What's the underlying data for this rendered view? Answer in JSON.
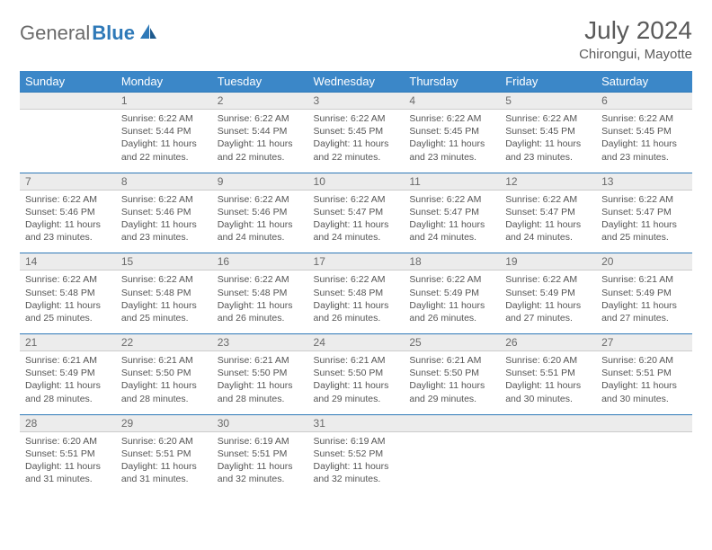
{
  "logo": {
    "text1": "General",
    "text2": "Blue"
  },
  "title": "July 2024",
  "location": "Chirongui, Mayotte",
  "colors": {
    "header_bg": "#3b87c8",
    "daynum_bg": "#ececec",
    "accent_border": "#2e79b8",
    "text": "#555555"
  },
  "dow": [
    "Sunday",
    "Monday",
    "Tuesday",
    "Wednesday",
    "Thursday",
    "Friday",
    "Saturday"
  ],
  "weeks": [
    {
      "nums": [
        "",
        "1",
        "2",
        "3",
        "4",
        "5",
        "6"
      ],
      "cells": [
        null,
        {
          "sr": "Sunrise: 6:22 AM",
          "ss": "Sunset: 5:44 PM",
          "d1": "Daylight: 11 hours",
          "d2": "and 22 minutes."
        },
        {
          "sr": "Sunrise: 6:22 AM",
          "ss": "Sunset: 5:44 PM",
          "d1": "Daylight: 11 hours",
          "d2": "and 22 minutes."
        },
        {
          "sr": "Sunrise: 6:22 AM",
          "ss": "Sunset: 5:45 PM",
          "d1": "Daylight: 11 hours",
          "d2": "and 22 minutes."
        },
        {
          "sr": "Sunrise: 6:22 AM",
          "ss": "Sunset: 5:45 PM",
          "d1": "Daylight: 11 hours",
          "d2": "and 23 minutes."
        },
        {
          "sr": "Sunrise: 6:22 AM",
          "ss": "Sunset: 5:45 PM",
          "d1": "Daylight: 11 hours",
          "d2": "and 23 minutes."
        },
        {
          "sr": "Sunrise: 6:22 AM",
          "ss": "Sunset: 5:45 PM",
          "d1": "Daylight: 11 hours",
          "d2": "and 23 minutes."
        }
      ]
    },
    {
      "nums": [
        "7",
        "8",
        "9",
        "10",
        "11",
        "12",
        "13"
      ],
      "cells": [
        {
          "sr": "Sunrise: 6:22 AM",
          "ss": "Sunset: 5:46 PM",
          "d1": "Daylight: 11 hours",
          "d2": "and 23 minutes."
        },
        {
          "sr": "Sunrise: 6:22 AM",
          "ss": "Sunset: 5:46 PM",
          "d1": "Daylight: 11 hours",
          "d2": "and 23 minutes."
        },
        {
          "sr": "Sunrise: 6:22 AM",
          "ss": "Sunset: 5:46 PM",
          "d1": "Daylight: 11 hours",
          "d2": "and 24 minutes."
        },
        {
          "sr": "Sunrise: 6:22 AM",
          "ss": "Sunset: 5:47 PM",
          "d1": "Daylight: 11 hours",
          "d2": "and 24 minutes."
        },
        {
          "sr": "Sunrise: 6:22 AM",
          "ss": "Sunset: 5:47 PM",
          "d1": "Daylight: 11 hours",
          "d2": "and 24 minutes."
        },
        {
          "sr": "Sunrise: 6:22 AM",
          "ss": "Sunset: 5:47 PM",
          "d1": "Daylight: 11 hours",
          "d2": "and 24 minutes."
        },
        {
          "sr": "Sunrise: 6:22 AM",
          "ss": "Sunset: 5:47 PM",
          "d1": "Daylight: 11 hours",
          "d2": "and 25 minutes."
        }
      ]
    },
    {
      "nums": [
        "14",
        "15",
        "16",
        "17",
        "18",
        "19",
        "20"
      ],
      "cells": [
        {
          "sr": "Sunrise: 6:22 AM",
          "ss": "Sunset: 5:48 PM",
          "d1": "Daylight: 11 hours",
          "d2": "and 25 minutes."
        },
        {
          "sr": "Sunrise: 6:22 AM",
          "ss": "Sunset: 5:48 PM",
          "d1": "Daylight: 11 hours",
          "d2": "and 25 minutes."
        },
        {
          "sr": "Sunrise: 6:22 AM",
          "ss": "Sunset: 5:48 PM",
          "d1": "Daylight: 11 hours",
          "d2": "and 26 minutes."
        },
        {
          "sr": "Sunrise: 6:22 AM",
          "ss": "Sunset: 5:48 PM",
          "d1": "Daylight: 11 hours",
          "d2": "and 26 minutes."
        },
        {
          "sr": "Sunrise: 6:22 AM",
          "ss": "Sunset: 5:49 PM",
          "d1": "Daylight: 11 hours",
          "d2": "and 26 minutes."
        },
        {
          "sr": "Sunrise: 6:22 AM",
          "ss": "Sunset: 5:49 PM",
          "d1": "Daylight: 11 hours",
          "d2": "and 27 minutes."
        },
        {
          "sr": "Sunrise: 6:21 AM",
          "ss": "Sunset: 5:49 PM",
          "d1": "Daylight: 11 hours",
          "d2": "and 27 minutes."
        }
      ]
    },
    {
      "nums": [
        "21",
        "22",
        "23",
        "24",
        "25",
        "26",
        "27"
      ],
      "cells": [
        {
          "sr": "Sunrise: 6:21 AM",
          "ss": "Sunset: 5:49 PM",
          "d1": "Daylight: 11 hours",
          "d2": "and 28 minutes."
        },
        {
          "sr": "Sunrise: 6:21 AM",
          "ss": "Sunset: 5:50 PM",
          "d1": "Daylight: 11 hours",
          "d2": "and 28 minutes."
        },
        {
          "sr": "Sunrise: 6:21 AM",
          "ss": "Sunset: 5:50 PM",
          "d1": "Daylight: 11 hours",
          "d2": "and 28 minutes."
        },
        {
          "sr": "Sunrise: 6:21 AM",
          "ss": "Sunset: 5:50 PM",
          "d1": "Daylight: 11 hours",
          "d2": "and 29 minutes."
        },
        {
          "sr": "Sunrise: 6:21 AM",
          "ss": "Sunset: 5:50 PM",
          "d1": "Daylight: 11 hours",
          "d2": "and 29 minutes."
        },
        {
          "sr": "Sunrise: 6:20 AM",
          "ss": "Sunset: 5:51 PM",
          "d1": "Daylight: 11 hours",
          "d2": "and 30 minutes."
        },
        {
          "sr": "Sunrise: 6:20 AM",
          "ss": "Sunset: 5:51 PM",
          "d1": "Daylight: 11 hours",
          "d2": "and 30 minutes."
        }
      ]
    },
    {
      "nums": [
        "28",
        "29",
        "30",
        "31",
        "",
        "",
        ""
      ],
      "cells": [
        {
          "sr": "Sunrise: 6:20 AM",
          "ss": "Sunset: 5:51 PM",
          "d1": "Daylight: 11 hours",
          "d2": "and 31 minutes."
        },
        {
          "sr": "Sunrise: 6:20 AM",
          "ss": "Sunset: 5:51 PM",
          "d1": "Daylight: 11 hours",
          "d2": "and 31 minutes."
        },
        {
          "sr": "Sunrise: 6:19 AM",
          "ss": "Sunset: 5:51 PM",
          "d1": "Daylight: 11 hours",
          "d2": "and 32 minutes."
        },
        {
          "sr": "Sunrise: 6:19 AM",
          "ss": "Sunset: 5:52 PM",
          "d1": "Daylight: 11 hours",
          "d2": "and 32 minutes."
        },
        null,
        null,
        null
      ]
    }
  ]
}
